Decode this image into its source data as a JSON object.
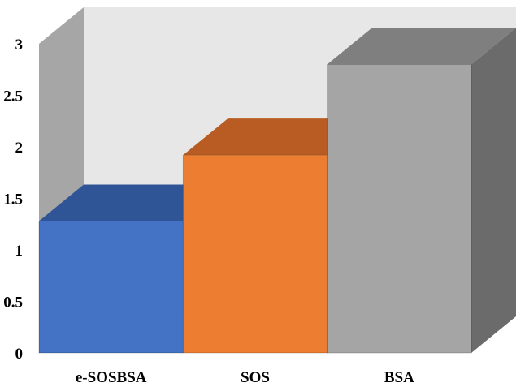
{
  "chart_data": {
    "type": "bar",
    "style": "3d",
    "categories": [
      "e-SOSBSA",
      "SOS",
      "BSA"
    ],
    "values": [
      1.28,
      1.92,
      2.8
    ],
    "yticks": [
      "0",
      "0.5",
      "1",
      "1.5",
      "2",
      "2.5",
      "3"
    ],
    "ylim": [
      0,
      3
    ],
    "title": "",
    "xlabel": "",
    "ylabel": "",
    "grid": false,
    "legend": "none",
    "colors": {
      "e-SOSBSA": {
        "front": "#4472C4",
        "top": "#2F5597",
        "side": "#2F5597"
      },
      "SOS": {
        "front": "#ED7D31",
        "top": "#B85C23",
        "side": "#B85C23"
      },
      "BSA": {
        "front": "#A5A5A5",
        "top": "#7F7F7F",
        "side": "#6B6B6B"
      }
    },
    "back_wall_color": "#E7E7E7",
    "side_wall_color": "#A6A6A6"
  }
}
